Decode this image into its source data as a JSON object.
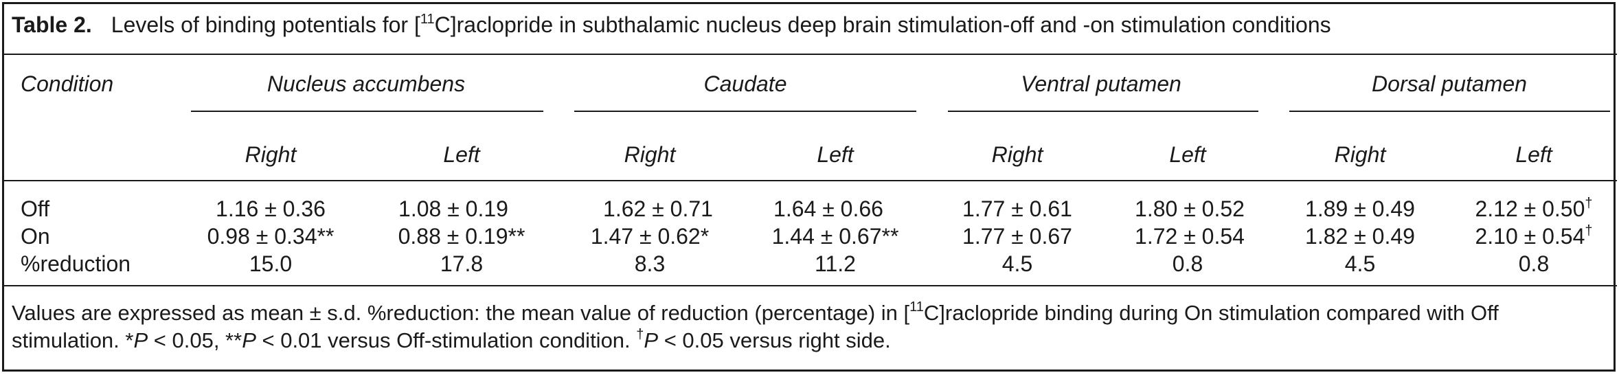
{
  "caption": {
    "label": "Table 2.",
    "text_before": "Levels of binding potentials for [",
    "text_sup": "11",
    "text_after": "C]raclopride in subthalamic nucleus deep brain stimulation-off and -on stimulation conditions"
  },
  "header": {
    "condition": "Condition",
    "groups": [
      "Nucleus accumbens",
      "Caudate",
      "Ventral putamen",
      "Dorsal putamen"
    ],
    "sides": [
      "Right",
      "Left",
      "Right",
      "Left",
      "Right",
      "Left",
      "Right",
      "Left"
    ]
  },
  "rows": [
    {
      "label": "Off",
      "values": [
        "1.16 ± 0.36",
        "1.08 ± 0.19",
        "1.62 ± 0.71",
        "1.64 ± 0.66",
        "1.77 ± 0.61",
        "1.80 ± 0.52",
        "1.89 ± 0.49",
        "2.12 ± 0.50"
      ],
      "marks": [
        "",
        "",
        "",
        "",
        "",
        "",
        "",
        "†"
      ]
    },
    {
      "label": "On",
      "values": [
        "0.98 ± 0.34**",
        "0.88 ± 0.19**",
        "1.47 ± 0.62*",
        "1.44 ± 0.67**",
        "1.77 ± 0.67",
        "1.72 ± 0.54",
        "1.82 ± 0.49",
        "2.10 ± 0.54"
      ],
      "marks": [
        "",
        "",
        "",
        "",
        "",
        "",
        "",
        "†"
      ]
    },
    {
      "label": "%reduction",
      "values": [
        "15.0",
        "17.8",
        "8.3",
        "11.2",
        "4.5",
        "0.8",
        "4.5",
        "0.8"
      ],
      "marks": [
        "",
        "",
        "",
        "",
        "",
        "",
        "",
        ""
      ]
    }
  ],
  "footnote": {
    "part1": "Values are expressed as mean ± s.d. %reduction: the mean value of reduction (percentage) in [",
    "sup1": "11",
    "part2": "C]raclopride binding during On stimulation compared with Off stimulation. *",
    "p1": "P",
    "part3": " < 0.05, **",
    "p2": "P",
    "part4": " < 0.01 versus Off-stimulation condition. ",
    "dagger": "†",
    "p3": "P",
    "part5": " < 0.05 versus right side."
  }
}
